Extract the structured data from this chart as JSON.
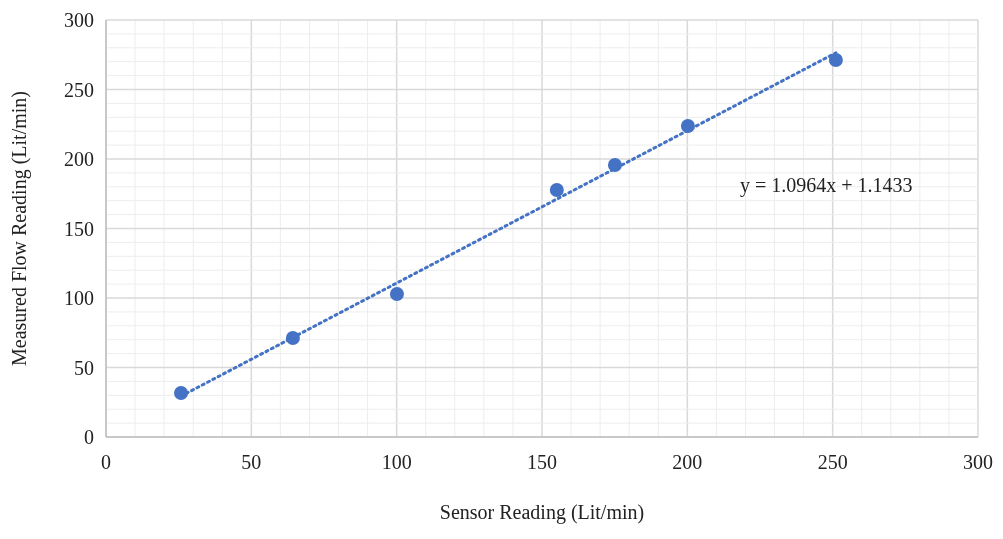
{
  "chart_data": {
    "type": "scatter",
    "xlabel": "Sensor Reading (Lit/min)",
    "ylabel": "Measured Flow Reading (Lit/min)",
    "xlim": [
      0,
      300
    ],
    "ylim": [
      0,
      300
    ],
    "xticks": [
      0,
      {
        "value": 10,
        "label": null
      },
      {
        "value": 20,
        "label": null
      },
      {
        "value": 30,
        "label": null
      },
      {
        "value": 40,
        "label": null
      },
      50,
      {
        "value": 60,
        "label": null
      },
      {
        "value": 70,
        "label": null
      },
      {
        "value": 80,
        "label": null
      },
      {
        "value": 90,
        "label": null
      },
      100,
      {
        "value": 110,
        "label": null
      },
      {
        "value": 120,
        "label": null
      },
      {
        "value": 130,
        "label": null
      },
      {
        "value": 140,
        "label": null
      },
      150,
      {
        "value": 160,
        "label": null
      },
      {
        "value": 170,
        "label": null
      },
      {
        "value": 180,
        "label": null
      },
      {
        "value": 190,
        "label": null
      },
      200,
      {
        "value": 210,
        "label": null
      },
      {
        "value": 220,
        "label": null
      },
      {
        "value": 230,
        "label": null
      },
      {
        "value": 240,
        "label": null
      },
      250,
      {
        "value": 260,
        "label": null
      },
      {
        "value": 270,
        "label": null
      },
      {
        "value": 280,
        "label": null
      },
      {
        "value": 290,
        "label": null
      },
      300
    ],
    "yticks": [
      0,
      {
        "value": 10,
        "label": null
      },
      {
        "value": 20,
        "label": null
      },
      {
        "value": 30,
        "label": null
      },
      {
        "value": 40,
        "label": null
      },
      50,
      {
        "value": 60,
        "label": null
      },
      {
        "value": 70,
        "label": null
      },
      {
        "value": 80,
        "label": null
      },
      {
        "value": 90,
        "label": null
      },
      100,
      {
        "value": 110,
        "label": null
      },
      {
        "value": 120,
        "label": null
      },
      {
        "value": 130,
        "label": null
      },
      {
        "value": 140,
        "label": null
      },
      150,
      {
        "value": 160,
        "label": null
      },
      {
        "value": 170,
        "label": null
      },
      {
        "value": 180,
        "label": null
      },
      {
        "value": 190,
        "label": null
      },
      200,
      {
        "value": 210,
        "label": null
      },
      {
        "value": 220,
        "label": null
      },
      {
        "value": 230,
        "label": null
      },
      {
        "value": 240,
        "label": null
      },
      250,
      {
        "value": 260,
        "label": null
      },
      {
        "value": 270,
        "label": null
      },
      {
        "value": 280,
        "label": null
      },
      {
        "value": 290,
        "label": null
      },
      300
    ],
    "grid": true,
    "series": [
      {
        "color": "#4472c4",
        "marker": "circle",
        "x": [
          25.8,
          64.3,
          100.1,
          155.1,
          175.1,
          200.2,
          251.1
        ],
        "values": [
          31.7,
          71.2,
          102.9,
          177.7,
          195.7,
          223.7,
          271.2
        ]
      },
      {
        "type": "line",
        "color": "#4472c4",
        "line_style": "dotted",
        "marker": "none",
        "x": [
          25.8,
          251.1
        ],
        "values": [
          29.4,
          276.4
        ]
      }
    ],
    "annotations": [
      "y = 1.0964x + 1.1433"
    ]
  }
}
